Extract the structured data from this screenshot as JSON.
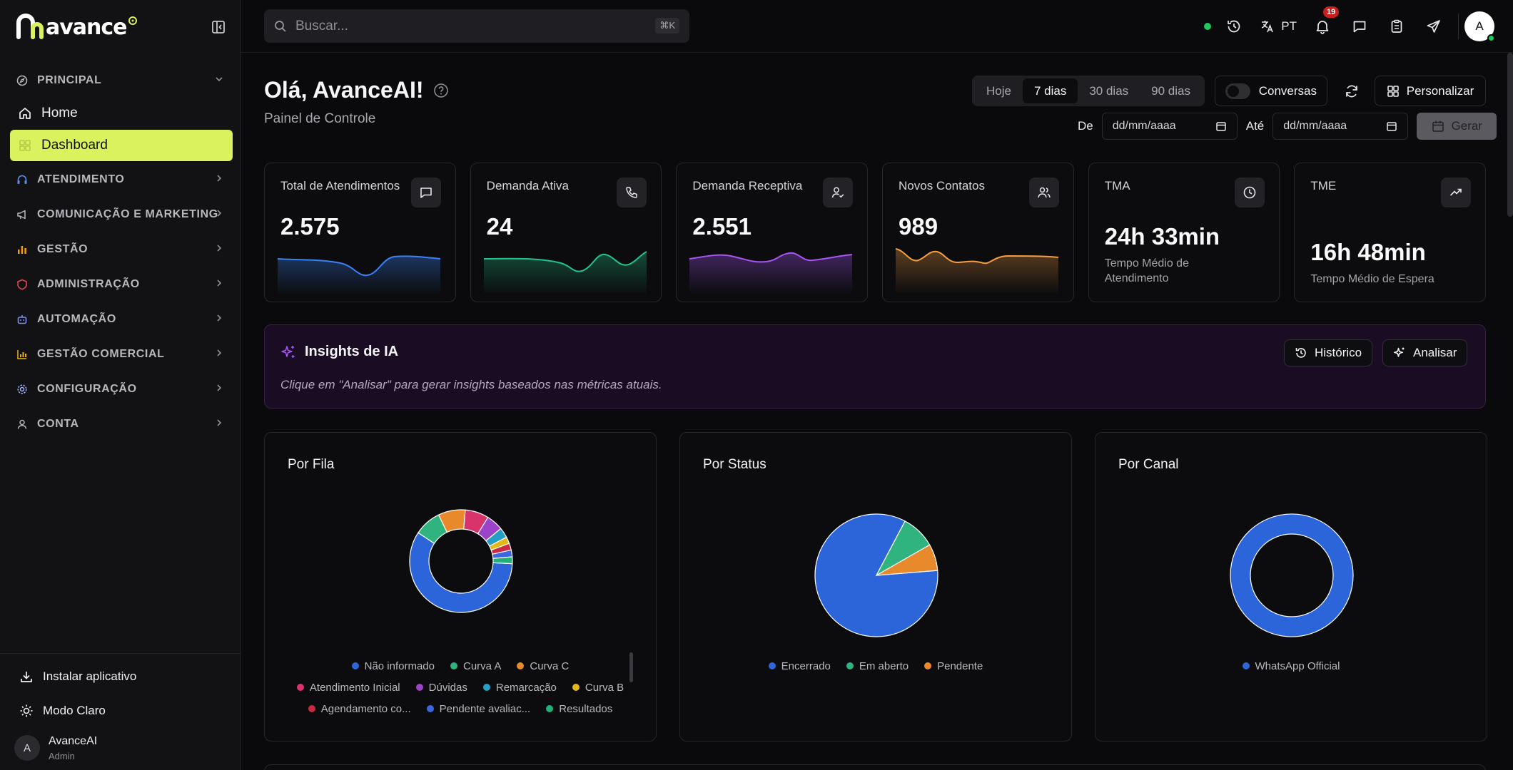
{
  "sidebar": {
    "logo_text": "avance",
    "sections": [
      {
        "label": "PRINCIPAL"
      },
      {
        "label": "ATENDIMENTO"
      },
      {
        "label": "COMUNICAÇÃO E MARKETING"
      },
      {
        "label": "GESTÃO"
      },
      {
        "label": "ADMINISTRAÇÃO"
      },
      {
        "label": "AUTOMAÇÃO"
      },
      {
        "label": "GESTÃO COMERCIAL"
      },
      {
        "label": "CONFIGURAÇÃO"
      },
      {
        "label": "CONTA"
      }
    ],
    "items": [
      {
        "label": "Home"
      },
      {
        "label": "Dashboard"
      }
    ],
    "bottom": {
      "install_label": "Instalar aplicativo",
      "theme_label": "Modo Claro",
      "user_initial": "A",
      "user_name": "AvanceAI",
      "user_role": "Admin"
    },
    "accent": "#d9f25d"
  },
  "topbar": {
    "search_placeholder": "Buscar...",
    "search_shortcut": "⌘K",
    "language": "PT",
    "notification_count": "19",
    "avatar_initial": "A"
  },
  "header": {
    "greeting": "Olá, AvanceAI!",
    "subtitle": "Painel de Controle",
    "ranges": [
      "Hoje",
      "7 dias",
      "30 dias",
      "90 dias"
    ],
    "active_range": "7 dias",
    "toggle_label": "Conversas",
    "customize_label": "Personalizar",
    "from_label": "De",
    "to_label": "Até",
    "date_placeholder": "dd/mm/aaaa",
    "generate_label": "Gerar"
  },
  "cards": [
    {
      "title": "Total de Atendimentos",
      "value": "2.575",
      "icon": "message-icon",
      "color": "#3b82f6"
    },
    {
      "title": "Demanda Ativa",
      "value": "24",
      "icon": "phone-icon",
      "color": "#22c58b"
    },
    {
      "title": "Demanda Receptiva",
      "value": "2.551",
      "icon": "user-check-icon",
      "color": "#a855f7"
    },
    {
      "title": "Novos Contatos",
      "value": "989",
      "icon": "users-icon",
      "color": "#f59e42"
    },
    {
      "title": "TMA",
      "value": "24h 33min",
      "subtitle": "Tempo Médio de Atendimento",
      "icon": "clock-icon"
    },
    {
      "title": "TME",
      "value": "16h 48min",
      "subtitle": "Tempo Médio de Espera",
      "icon": "trending-up-icon"
    }
  ],
  "insights": {
    "title": "Insights de IA",
    "description": "Clique em \"Analisar\" para gerar insights baseados nas métricas atuais.",
    "history_label": "Histórico",
    "analyze_label": "Analisar"
  },
  "panels": {
    "fila_title": "Por Fila",
    "status_title": "Por Status",
    "canal_title": "Por Canal"
  },
  "chart_data": [
    {
      "type": "pie",
      "title": "Por Fila",
      "donut": true,
      "categories": [
        "Não informado",
        "Curva A",
        "Curva C",
        "Atendimento Inicial",
        "Dúvidas",
        "Remarcação",
        "Curva B",
        "Agendamento co...",
        "Pendente avaliac...",
        "Resultados"
      ],
      "values": [
        55,
        8,
        8,
        7,
        5,
        3,
        2,
        2,
        2,
        2
      ],
      "colors": [
        "#2c65d9",
        "#2fb37f",
        "#e8892c",
        "#d9336b",
        "#9b43c9",
        "#25a0c4",
        "#e5b819",
        "#c92a3f",
        "#3a67e0",
        "#21b07a"
      ]
    },
    {
      "type": "pie",
      "title": "Por Status",
      "categories": [
        "Encerrado",
        "Em aberto",
        "Pendente"
      ],
      "values": [
        84,
        9,
        7
      ],
      "colors": [
        "#2c65d9",
        "#2fb37f",
        "#e8892c"
      ]
    },
    {
      "type": "pie",
      "title": "Por Canal",
      "donut": true,
      "categories": [
        "WhatsApp Official"
      ],
      "values": [
        100
      ],
      "colors": [
        "#2c65d9"
      ]
    }
  ]
}
